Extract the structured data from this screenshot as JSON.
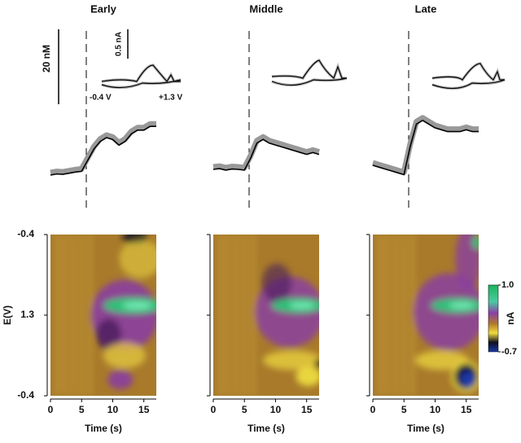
{
  "chart_data": [
    {
      "type": "heatmap",
      "title": "Early",
      "xlabel": "Time (s)",
      "ylabel": "E(V)",
      "ytick_labels": [
        "-0.4",
        "1.3",
        "-0.4"
      ],
      "xlim": [
        0,
        17
      ],
      "xticks": [
        0,
        5,
        10,
        15
      ],
      "variant": "early",
      "trace": {
        "x": [
          0,
          1,
          2,
          3,
          4,
          5,
          6,
          7,
          8,
          9,
          10,
          11,
          12,
          13,
          14,
          15,
          16,
          17
        ],
        "values": [
          0,
          0.3,
          0.2,
          0.5,
          0.8,
          1,
          4,
          7,
          9,
          10,
          9.5,
          8,
          9,
          11,
          12,
          12,
          13,
          13
        ]
      }
    },
    {
      "type": "heatmap",
      "title": "Middle",
      "xlabel": "Time (s)",
      "xlim": [
        0,
        17
      ],
      "xticks": [
        0,
        5,
        10,
        15
      ],
      "variant": "middle",
      "trace": {
        "x": [
          0,
          1,
          2,
          3,
          4,
          5,
          6,
          7,
          8,
          9,
          10,
          11,
          12,
          13,
          14,
          15,
          16,
          17
        ],
        "values": [
          0,
          0.2,
          -0.2,
          0.1,
          0,
          -0.2,
          3,
          7,
          8,
          7,
          6.5,
          6,
          5.5,
          5,
          4.5,
          4,
          4.5,
          4
        ]
      }
    },
    {
      "type": "heatmap",
      "title": "Late",
      "xlabel": "Time (s)",
      "xlim": [
        0,
        17
      ],
      "xticks": [
        0,
        5,
        10,
        15
      ],
      "variant": "late",
      "trace": {
        "x": [
          0,
          1,
          2,
          3,
          4,
          5,
          6,
          7,
          8,
          9,
          10,
          11,
          12,
          13,
          14,
          15,
          16,
          17
        ],
        "values": [
          0,
          -0.5,
          -1,
          -1.5,
          -2,
          -2.5,
          5,
          11,
          12,
          11,
          10,
          9.5,
          9,
          9,
          9,
          9.5,
          9,
          9
        ]
      }
    }
  ],
  "colorbar": {
    "label": "nA",
    "ticks": [
      {
        "value": 1,
        "label": "1.0"
      },
      -0.7
    ],
    "lim": [
      -0.7,
      1
    ]
  },
  "scale_bars": {
    "concentration": "20 nM",
    "current": "0.5 nA",
    "potential_start": "-0.4 V",
    "potential_end": "+1.3 V"
  }
}
